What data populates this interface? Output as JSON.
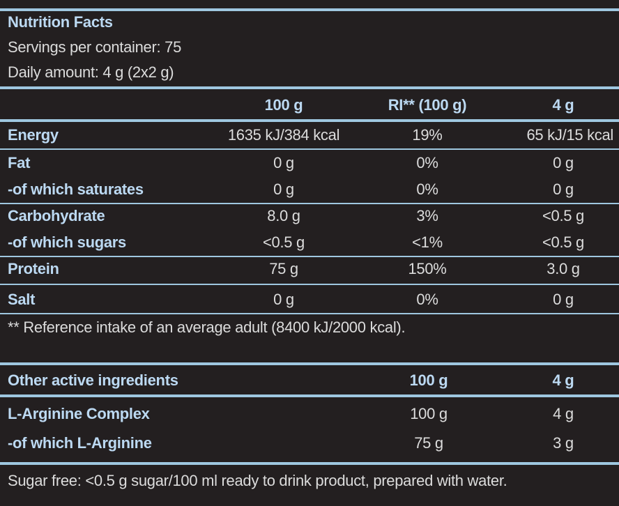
{
  "header": {
    "title": "Nutrition Facts",
    "servings": "Servings per container: 75",
    "daily": "Daily amount: 4 g (2x2 g)"
  },
  "nutrition": {
    "columns": [
      "100 g",
      "RI** (100 g)",
      "4 g"
    ],
    "rows": [
      {
        "name": "Energy",
        "v100": "1635 kJ/384 kcal",
        "ri": "19%",
        "v4": "65 kJ/15 kcal"
      },
      {
        "name": "Fat",
        "v100": "0 g",
        "ri": "0%",
        "v4": "0 g"
      },
      {
        "name": "-of which saturates",
        "v100": "0 g",
        "ri": "0%",
        "v4": "0 g"
      },
      {
        "name": "Carbohydrate",
        "v100": "8.0 g",
        "ri": "3%",
        "v4": "<0.5 g"
      },
      {
        "name": "-of which sugars",
        "v100": "<0.5 g",
        "ri": "<1%",
        "v4": "<0.5 g"
      },
      {
        "name": "Protein",
        "v100": "75 g",
        "ri": "150%",
        "v4": "3.0 g"
      },
      {
        "name": "Salt",
        "v100": "0 g",
        "ri": "0%",
        "v4": "0 g"
      }
    ],
    "footnote": "** Reference intake of an average adult (8400 kJ/2000 kcal)."
  },
  "other": {
    "title": "Other active ingredients",
    "columns": [
      "100 g",
      "4 g"
    ],
    "rows": [
      {
        "name": "L-Arginine Complex",
        "v100": "100 g",
        "v4": "4 g"
      },
      {
        "name": "-of which L-Arginine",
        "v100": "75 g",
        "v4": "3 g"
      }
    ]
  },
  "footer": "Sugar free: <0.5 g sugar/100 ml ready to drink product, prepared with water."
}
